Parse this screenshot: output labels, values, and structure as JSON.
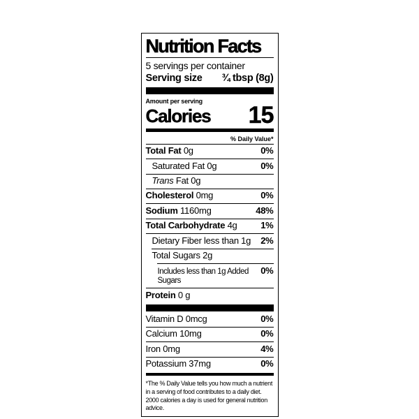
{
  "colors": {
    "ink": "#000000",
    "background": "#ffffff"
  },
  "label": {
    "title": "Nutrition Facts",
    "servings_per_container": "5 servings per container",
    "serving_size": {
      "label": "Serving size",
      "value": "¾ tbsp (8g)"
    },
    "amount_per_serving": "Amount per serving",
    "calories": {
      "label": "Calories",
      "value": "15"
    },
    "daily_value_header": "% Daily Value*",
    "rows": [
      {
        "bold": "Total Fat",
        "rest": " 0g",
        "pct": "0%"
      },
      {
        "bold": "",
        "rest": "Saturated Fat 0g",
        "pct": "0%"
      },
      {
        "bold": "",
        "italic": "Trans",
        "rest": " Fat 0g",
        "pct": ""
      },
      {
        "bold": "Cholesterol",
        "rest": " 0mg",
        "pct": "0%"
      },
      {
        "bold": "Sodium",
        "rest": " 1160mg",
        "pct": "48%"
      },
      {
        "bold": "Total Carbohydrate",
        "rest": " 4g",
        "pct": "1%"
      },
      {
        "bold": "",
        "rest": "Dietary Fiber less than 1g",
        "pct": "2%"
      },
      {
        "bold": "",
        "rest": "Total Sugars 2g",
        "pct": ""
      },
      {
        "bold": "",
        "rest": "Includes less than 1g Added Sugars",
        "pct": "0%"
      },
      {
        "bold": "Protein",
        "rest": " 0 g",
        "pct": ""
      }
    ],
    "micronutrients": [
      {
        "name": "Vitamin D 0mcg",
        "pct": "0%"
      },
      {
        "name": "Calcium 10mg",
        "pct": "0%"
      },
      {
        "name": "Iron 0mg",
        "pct": "4%"
      },
      {
        "name": "Potassium 37mg",
        "pct": "0%"
      }
    ],
    "footnote": "*The % Daily Value tells you how much a nutrient in a serving of food contributes to a daily diet. 2000 calories a day is used for general nutrition advice."
  }
}
